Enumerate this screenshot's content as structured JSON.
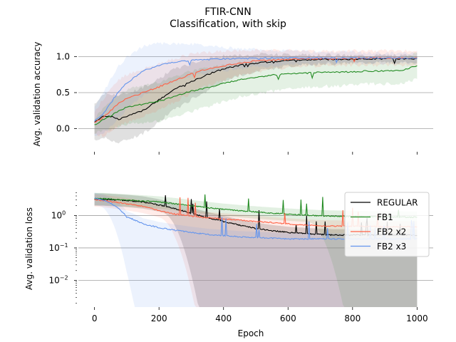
{
  "figure": {
    "title": "FTIR-CNN",
    "subtitle": "Classification, with skip"
  },
  "chart_data": [
    {
      "type": "line",
      "xlabel": "",
      "ylabel": "Avg. validation accuracy",
      "xlim": [
        -50,
        1050
      ],
      "ylim": [
        -0.32,
        1.3
      ],
      "yscale": "linear",
      "yticks": [
        "0.0",
        "0.5",
        "1.0"
      ],
      "ytick_values": [
        0.0,
        0.5,
        1.0
      ],
      "grid": "horizontal",
      "x": [
        0,
        25,
        50,
        75,
        100,
        150,
        200,
        250,
        300,
        350,
        400,
        450,
        500,
        550,
        600,
        650,
        700,
        750,
        800,
        850,
        900,
        950,
        1000
      ],
      "series": [
        {
          "name": "REGULAR",
          "color": "#000000",
          "values": [
            0.08,
            0.18,
            0.17,
            0.13,
            0.17,
            0.25,
            0.4,
            0.55,
            0.65,
            0.75,
            0.83,
            0.88,
            0.91,
            0.93,
            0.95,
            0.95,
            0.96,
            0.96,
            0.96,
            0.97,
            0.97,
            0.97,
            0.97
          ],
          "band": [
            0.25,
            0.3,
            0.32,
            0.33,
            0.32,
            0.32,
            0.3,
            0.28,
            0.25,
            0.22,
            0.18,
            0.14,
            0.12,
            0.1,
            0.08,
            0.07,
            0.06,
            0.06,
            0.05,
            0.05,
            0.05,
            0.05,
            0.05
          ]
        },
        {
          "name": "FB1",
          "color": "#228b22",
          "values": [
            0.05,
            0.12,
            0.18,
            0.25,
            0.3,
            0.34,
            0.38,
            0.45,
            0.52,
            0.57,
            0.63,
            0.68,
            0.71,
            0.74,
            0.76,
            0.77,
            0.78,
            0.78,
            0.79,
            0.8,
            0.8,
            0.81,
            0.87
          ],
          "band": [
            0.1,
            0.15,
            0.2,
            0.22,
            0.24,
            0.26,
            0.27,
            0.28,
            0.28,
            0.27,
            0.25,
            0.24,
            0.23,
            0.22,
            0.21,
            0.2,
            0.19,
            0.19,
            0.19,
            0.18,
            0.18,
            0.18,
            0.18
          ]
        },
        {
          "name": "FB2 x2",
          "color": "#ff6347",
          "values": [
            0.08,
            0.15,
            0.25,
            0.35,
            0.42,
            0.5,
            0.58,
            0.67,
            0.76,
            0.83,
            0.87,
            0.91,
            0.94,
            0.95,
            0.96,
            0.97,
            0.97,
            0.97,
            0.98,
            0.98,
            0.98,
            0.98,
            0.98
          ],
          "band": [
            0.15,
            0.25,
            0.3,
            0.32,
            0.33,
            0.33,
            0.32,
            0.3,
            0.27,
            0.23,
            0.2,
            0.17,
            0.15,
            0.13,
            0.12,
            0.11,
            0.1,
            0.1,
            0.1,
            0.1,
            0.1,
            0.1,
            0.1
          ]
        },
        {
          "name": "FB2 x3",
          "color": "#6495ed",
          "values": [
            0.1,
            0.2,
            0.35,
            0.52,
            0.63,
            0.8,
            0.88,
            0.92,
            0.95,
            0.96,
            0.97,
            0.97,
            0.98,
            0.98,
            0.98,
            0.98,
            0.98,
            0.98,
            0.98,
            0.98,
            0.98,
            0.98,
            0.98
          ],
          "band": [
            0.2,
            0.28,
            0.33,
            0.36,
            0.36,
            0.34,
            0.3,
            0.26,
            0.22,
            0.19,
            0.16,
            0.14,
            0.12,
            0.11,
            0.1,
            0.09,
            0.08,
            0.08,
            0.08,
            0.07,
            0.07,
            0.07,
            0.07
          ]
        }
      ]
    },
    {
      "type": "line",
      "xlabel": "Epoch",
      "ylabel": "Avg. validation loss",
      "xlim": [
        -50,
        1050
      ],
      "ylim": [
        0.0015,
        6
      ],
      "yscale": "log",
      "yticks": [
        "10^0",
        "10^-1",
        "10^-2"
      ],
      "ytick_values": [
        1,
        0.1,
        0.01
      ],
      "xticks": [
        "0",
        "200",
        "400",
        "600",
        "800",
        "1000"
      ],
      "xtick_values": [
        0,
        200,
        400,
        600,
        800,
        1000
      ],
      "grid": "horizontal",
      "legend": "top-right",
      "x": [
        0,
        25,
        50,
        75,
        100,
        150,
        200,
        250,
        300,
        350,
        400,
        450,
        500,
        550,
        600,
        650,
        700,
        750,
        800,
        850,
        900,
        950,
        1000
      ],
      "series": [
        {
          "name": "REGULAR",
          "color": "#000000",
          "values": [
            3.2,
            3.2,
            3.1,
            3.0,
            2.9,
            2.6,
            2.1,
            1.6,
            1.15,
            0.85,
            0.65,
            0.5,
            0.4,
            0.34,
            0.3,
            0.28,
            0.26,
            0.25,
            0.25,
            0.25,
            0.25,
            0.25,
            0.25
          ]
        },
        {
          "name": "FB1",
          "color": "#228b22",
          "values": [
            3.3,
            3.3,
            3.2,
            3.1,
            3.0,
            2.8,
            2.6,
            2.3,
            2.0,
            1.75,
            1.55,
            1.4,
            1.28,
            1.18,
            1.1,
            1.03,
            0.98,
            0.95,
            0.93,
            0.92,
            0.9,
            0.9,
            0.88
          ]
        },
        {
          "name": "FB2 x2",
          "color": "#ff6347",
          "values": [
            3.0,
            2.9,
            2.7,
            2.5,
            2.3,
            1.9,
            1.4,
            1.1,
            0.95,
            0.85,
            0.78,
            0.72,
            0.66,
            0.6,
            0.55,
            0.51,
            0.48,
            0.47,
            0.46,
            0.46,
            0.45,
            0.45,
            0.45
          ]
        },
        {
          "name": "FB2 x3",
          "color": "#6495ed",
          "values": [
            3.4,
            3.0,
            2.4,
            1.6,
            0.9,
            0.55,
            0.42,
            0.35,
            0.3,
            0.26,
            0.24,
            0.22,
            0.21,
            0.2,
            0.19,
            0.19,
            0.19,
            0.19,
            0.19,
            0.19,
            0.19,
            0.19,
            0.19
          ]
        }
      ]
    }
  ]
}
